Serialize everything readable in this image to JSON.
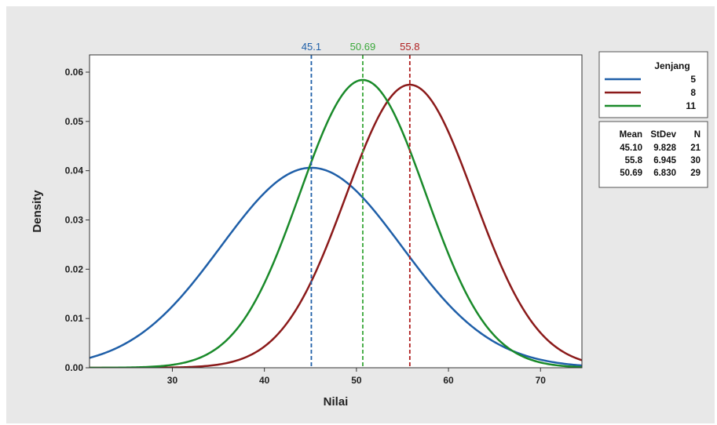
{
  "chart_data": {
    "type": "line",
    "title": "",
    "xlabel": "Nilai",
    "ylabel": "Density",
    "xlim": [
      21,
      74.5
    ],
    "ylim": [
      0,
      0.0635
    ],
    "x_ticks": [
      30,
      40,
      50,
      60,
      70
    ],
    "y_ticks": [
      0.0,
      0.01,
      0.02,
      0.03,
      0.04,
      0.05,
      0.06
    ],
    "y_tick_labels": [
      "0.00",
      "0.01",
      "0.02",
      "0.03",
      "0.04",
      "0.05",
      "0.06"
    ],
    "grid": false,
    "series": [
      {
        "name": "5",
        "distribution": "normal",
        "mean": 45.1,
        "stdev": 9.828,
        "n": 21,
        "color": "#1f5fa8"
      },
      {
        "name": "8",
        "distribution": "normal",
        "mean": 55.8,
        "stdev": 6.945,
        "n": 30,
        "color": "#8b1a1a"
      },
      {
        "name": "11",
        "distribution": "normal",
        "mean": 50.69,
        "stdev": 6.83,
        "n": 29,
        "color": "#1a8a2a"
      }
    ],
    "reference_lines": [
      {
        "x": 45.1,
        "label": "45.1",
        "color": "#1f5fa8"
      },
      {
        "x": 50.69,
        "label": "50.69",
        "color": "#3aa83a"
      },
      {
        "x": 55.8,
        "label": "55.8",
        "color": "#b02020"
      }
    ],
    "legend": {
      "title": "Jenjang",
      "placement": "right",
      "entries": [
        "5",
        "8",
        "11"
      ]
    },
    "stats_table": {
      "headers": [
        "Mean",
        "StDev",
        "N"
      ],
      "rows": [
        [
          "45.10",
          "9.828",
          "21"
        ],
        [
          "55.8",
          "6.945",
          "30"
        ],
        [
          "50.69",
          "6.830",
          "29"
        ]
      ]
    }
  }
}
